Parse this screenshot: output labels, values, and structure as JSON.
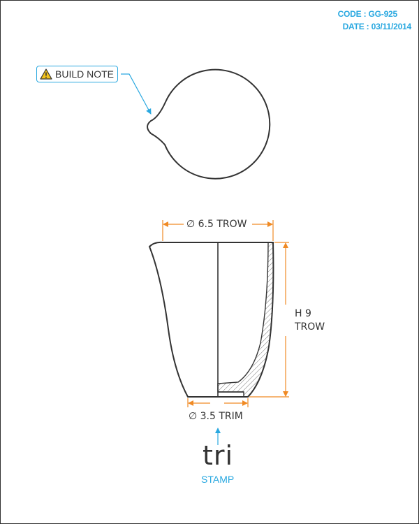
{
  "meta": {
    "code": "CODE : GG-925",
    "date": "DATE : 03/11/2014"
  },
  "callout": {
    "label": "BUILD NOTE",
    "icon": "warning-triangle-icon"
  },
  "dimensions": {
    "top_diameter": "∅ 6.5 TROW",
    "bottom_diameter": "∅ 3.5 TRIM",
    "height_line1": "H 9",
    "height_line2": "TROW"
  },
  "stamp": {
    "mark": "tri",
    "label": "STAMP"
  },
  "colors": {
    "accent_blue": "#29a8e0",
    "dimension_orange": "#f08a24",
    "line_dark": "#333333"
  }
}
